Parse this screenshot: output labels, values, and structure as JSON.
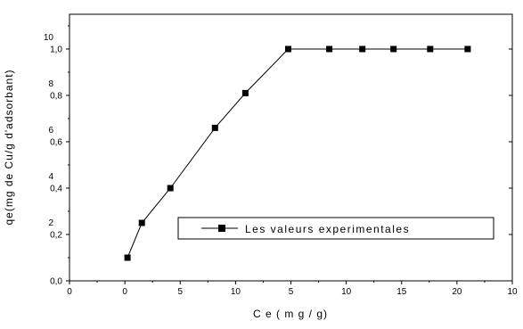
{
  "chart_data": {
    "type": "line",
    "xlabel": "C e ( m g / g)",
    "ylabel": "qe(mg de Cu/g d'adsorbant)",
    "x_tick_labels": [
      "0",
      "0",
      "5",
      "10",
      "5",
      "10",
      "15",
      "20",
      "10"
    ],
    "y_left_tick_labels": [
      "0,0",
      "0,2",
      "0,4",
      "0,6",
      "0,8",
      "1,0"
    ],
    "y_right_tick_labels": [
      "2",
      "4",
      "6",
      "8",
      "10"
    ],
    "grid": false,
    "legend_position": "lower-right",
    "series": [
      {
        "name": "Les valeurs experimentales",
        "x": [
          0.85,
          1.65,
          3.25,
          5.75,
          7.45,
          9.85,
          12.15,
          14.0,
          15.75,
          17.8,
          19.9
        ],
        "y": [
          0.1,
          0.25,
          0.4,
          0.66,
          0.81,
          1.0,
          1.0,
          1.0,
          1.0,
          1.0,
          1.0
        ]
      }
    ]
  }
}
